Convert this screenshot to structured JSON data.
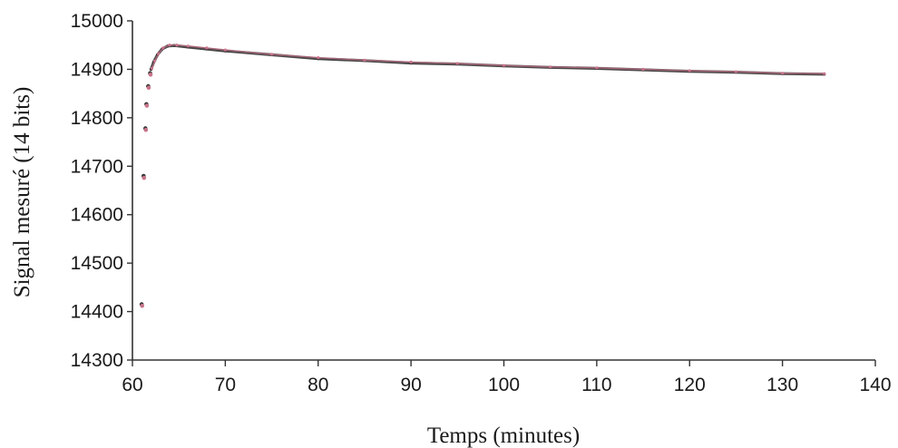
{
  "chart_data": {
    "type": "scatter",
    "title": "",
    "xlabel": "Temps (minutes)",
    "ylabel": "Signal mesuré (14 bits)",
    "xlim": [
      60,
      140
    ],
    "ylim": [
      14300,
      15000
    ],
    "x_ticks": [
      "60",
      "70",
      "80",
      "90",
      "100",
      "110",
      "120",
      "130",
      "140"
    ],
    "y_ticks": [
      "14300",
      "14400",
      "14500",
      "14600",
      "14700",
      "14800",
      "14900",
      "15000"
    ],
    "grid": false,
    "legend": "none",
    "series": [
      {
        "color": "#333333",
        "marker": "dot",
        "points": [
          [
            61.0,
            14415
          ],
          [
            61.2,
            14680
          ],
          [
            61.4,
            14778
          ],
          [
            61.5,
            14828
          ],
          [
            61.7,
            14865
          ],
          [
            61.9,
            14892
          ],
          [
            62.0,
            14900
          ],
          [
            62.3,
            14915
          ],
          [
            62.7,
            14930
          ],
          [
            63.2,
            14942
          ],
          [
            63.8,
            14948
          ],
          [
            64.5,
            14949
          ],
          [
            66,
            14946
          ],
          [
            68,
            14942
          ],
          [
            70,
            14938
          ],
          [
            75,
            14930
          ],
          [
            80,
            14922
          ],
          [
            85,
            14918
          ],
          [
            90,
            14913
          ],
          [
            95,
            14911
          ],
          [
            100,
            14907
          ],
          [
            105,
            14904
          ],
          [
            110,
            14902
          ],
          [
            115,
            14899
          ],
          [
            120,
            14896
          ],
          [
            125,
            14894
          ],
          [
            130,
            14891
          ],
          [
            134.5,
            14890
          ]
        ]
      },
      {
        "color": "#c8748a",
        "marker": "dot",
        "points": [
          [
            61.05,
            14412
          ],
          [
            61.25,
            14676
          ],
          [
            61.45,
            14775
          ],
          [
            61.55,
            14825
          ],
          [
            61.75,
            14862
          ],
          [
            61.95,
            14889
          ],
          [
            62.1,
            14902
          ],
          [
            62.4,
            14917
          ],
          [
            62.8,
            14932
          ],
          [
            63.3,
            14944
          ],
          [
            64,
            14950
          ],
          [
            64.8,
            14950
          ],
          [
            66,
            14948
          ],
          [
            68,
            14944
          ],
          [
            70,
            14940
          ],
          [
            75,
            14931
          ],
          [
            80,
            14924
          ],
          [
            85,
            14919
          ],
          [
            90,
            14915
          ],
          [
            95,
            14912
          ],
          [
            100,
            14908
          ],
          [
            105,
            14905
          ],
          [
            110,
            14903
          ],
          [
            115,
            14900
          ],
          [
            120,
            14897
          ],
          [
            125,
            14895
          ],
          [
            130,
            14892
          ],
          [
            134.5,
            14891
          ]
        ]
      }
    ]
  }
}
